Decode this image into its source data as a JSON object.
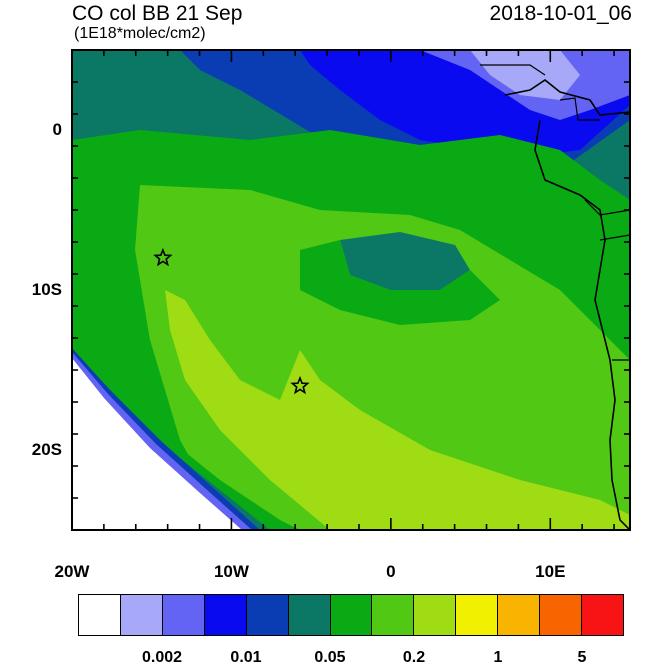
{
  "header": {
    "title": "CO col BB 21 Sep",
    "units": "(1E18*molec/cm2)",
    "timestamp": "2018-10-01_06"
  },
  "axes": {
    "x_ticks": [
      {
        "value": -20,
        "label": "20W"
      },
      {
        "value": -10,
        "label": "10W"
      },
      {
        "value": 0,
        "label": "0"
      },
      {
        "value": 10,
        "label": "10E"
      }
    ],
    "y_ticks": [
      {
        "value": 0,
        "label": "0"
      },
      {
        "value": -10,
        "label": "10S"
      },
      {
        "value": -20,
        "label": "20S"
      }
    ],
    "lon_range": [
      -20,
      15
    ],
    "lat_range": [
      -25,
      5
    ]
  },
  "markers": [
    {
      "name": "star-marker",
      "lon": -14.3,
      "lat": -8.0
    },
    {
      "name": "star-marker",
      "lon": -5.7,
      "lat": -16.0
    }
  ],
  "colorbar": {
    "colors": [
      "#ffffff",
      "#a8a8f8",
      "#6464f4",
      "#0a0af0",
      "#0a3cb4",
      "#0a7864",
      "#0aaa14",
      "#50c814",
      "#a0dc14",
      "#f0f000",
      "#f8b400",
      "#f86400",
      "#f81414"
    ],
    "labels": [
      {
        "boundary": 2,
        "text": "0.002"
      },
      {
        "boundary": 4,
        "text": "0.01"
      },
      {
        "boundary": 6,
        "text": "0.05"
      },
      {
        "boundary": 8,
        "text": "0.2"
      },
      {
        "boundary": 10,
        "text": "1"
      },
      {
        "boundary": 12,
        "text": "5"
      }
    ]
  }
}
